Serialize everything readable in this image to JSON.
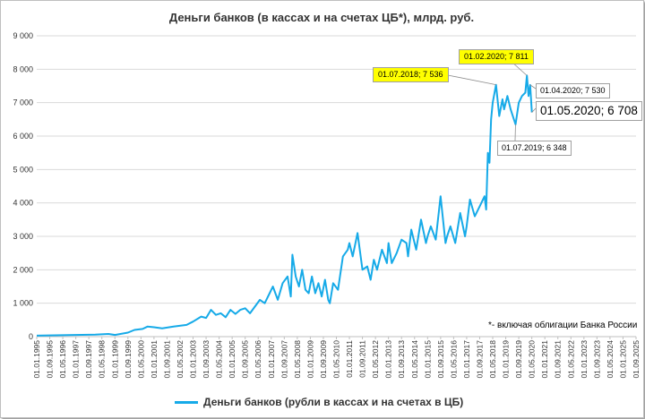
{
  "chart_data": {
    "type": "line",
    "title": "Деньги банков (в кассах и на счетах ЦБ*), млрд. руб.",
    "footnote": "*- включая облигации Банка России",
    "ylim": [
      0,
      9000
    ],
    "y_ticks": [
      "0",
      "1 000",
      "2 000",
      "3 000",
      "4 000",
      "5 000",
      "6 000",
      "7 000",
      "8 000",
      "9 000"
    ],
    "x_ticks": [
      "01.01.1995",
      "01.09.1995",
      "01.05.1996",
      "01.01.1997",
      "01.09.1997",
      "01.05.1998",
      "01.01.1999",
      "01.09.1999",
      "01.05.2000",
      "01.01.2001",
      "01.09.2001",
      "01.05.2002",
      "01.01.2003",
      "01.09.2003",
      "01.05.2004",
      "01.01.2005",
      "01.09.2005",
      "01.05.2006",
      "01.01.2007",
      "01.09.2007",
      "01.05.2008",
      "01.01.2009",
      "01.09.2009",
      "01.05.2010",
      "01.01.2011",
      "01.09.2011",
      "01.05.2012",
      "01.01.2013",
      "01.09.2013",
      "01.05.2014",
      "01.01.2015",
      "01.09.2015",
      "01.05.2016",
      "01.01.2017",
      "01.09.2017",
      "01.05.2018",
      "01.01.2019",
      "01.09.2019",
      "01.05.2020",
      "01.01.2021",
      "01.09.2021",
      "01.05.2022",
      "01.01.2023",
      "01.09.2023",
      "01.05.2024",
      "01.01.2025",
      "01.09.2025"
    ],
    "grid": true,
    "legend_position": "bottom",
    "series": [
      {
        "name": "Деньги банков (рубли в кассах и на счетах в ЦБ)",
        "color": "#16aae8",
        "x": [
          "1995-01",
          "1996-01",
          "1997-01",
          "1998-01",
          "1998-09",
          "1999-01",
          "1999-09",
          "2000-01",
          "2000-06",
          "2000-09",
          "2001-01",
          "2001-06",
          "2002-01",
          "2002-09",
          "2003-01",
          "2003-06",
          "2003-09",
          "2003-12",
          "2004-03",
          "2004-06",
          "2004-09",
          "2004-12",
          "2005-03",
          "2005-06",
          "2005-09",
          "2005-12",
          "2006-03",
          "2006-06",
          "2006-09",
          "2006-12",
          "2007-02",
          "2007-05",
          "2007-08",
          "2007-11",
          "2008-01",
          "2008-02",
          "2008-04",
          "2008-06",
          "2008-08",
          "2008-10",
          "2008-12",
          "2009-02",
          "2009-04",
          "2009-06",
          "2009-08",
          "2009-10",
          "2009-12",
          "2010-01",
          "2010-03",
          "2010-06",
          "2010-09",
          "2010-12",
          "2011-01",
          "2011-03",
          "2011-06",
          "2011-09",
          "2011-12",
          "2012-02",
          "2012-04",
          "2012-06",
          "2012-09",
          "2012-12",
          "2013-01",
          "2013-03",
          "2013-06",
          "2013-09",
          "2013-12",
          "2014-01",
          "2014-03",
          "2014-06",
          "2014-09",
          "2014-12",
          "2015-01",
          "2015-03",
          "2015-06",
          "2015-09",
          "2015-12",
          "2016-01",
          "2016-03",
          "2016-06",
          "2016-09",
          "2016-12",
          "2017-01",
          "2017-03",
          "2017-06",
          "2017-09",
          "2017-12",
          "2018-01",
          "2018-02",
          "2018-03",
          "2018-04",
          "2018-05",
          "2018-07",
          "2018-09",
          "2018-11",
          "2018-12",
          "2019-02",
          "2019-04",
          "2019-07",
          "2019-09",
          "2019-11",
          "2020-01",
          "2020-02",
          "2020-03",
          "2020-04",
          "2020-05"
        ],
        "values": [
          30,
          40,
          50,
          60,
          80,
          50,
          120,
          200,
          230,
          300,
          280,
          250,
          300,
          350,
          450,
          600,
          560,
          800,
          650,
          700,
          580,
          800,
          680,
          800,
          850,
          700,
          900,
          1100,
          1000,
          1300,
          1500,
          1100,
          1600,
          1800,
          1200,
          2450,
          1800,
          1500,
          2000,
          1400,
          1300,
          1800,
          1300,
          1600,
          1200,
          1700,
          1100,
          1000,
          1600,
          1400,
          2400,
          2600,
          2800,
          2400,
          3100,
          2000,
          2100,
          1700,
          2300,
          2000,
          2600,
          2200,
          2800,
          2200,
          2500,
          2900,
          2800,
          2400,
          3200,
          2600,
          3500,
          2800,
          3000,
          3300,
          2900,
          4200,
          2800,
          3000,
          3300,
          2800,
          3700,
          3000,
          3300,
          4100,
          3600,
          3900,
          4200,
          3800,
          5500,
          5200,
          6500,
          7000,
          7536,
          6600,
          7100,
          6800,
          7200,
          6800,
          6348,
          7000,
          7200,
          7300,
          7811,
          7200,
          7530,
          6708
        ]
      }
    ],
    "annotations": [
      {
        "label": "01.07.2018;  7 536",
        "style": "yellow"
      },
      {
        "label": "01.02.2020;  7 811",
        "style": "yellow"
      },
      {
        "label": "01.04.2020;  7 530",
        "style": "white"
      },
      {
        "label": "01.05.2020;  6 708",
        "style": "big"
      },
      {
        "label": "01.07.2019;  6 348",
        "style": "white"
      }
    ]
  }
}
